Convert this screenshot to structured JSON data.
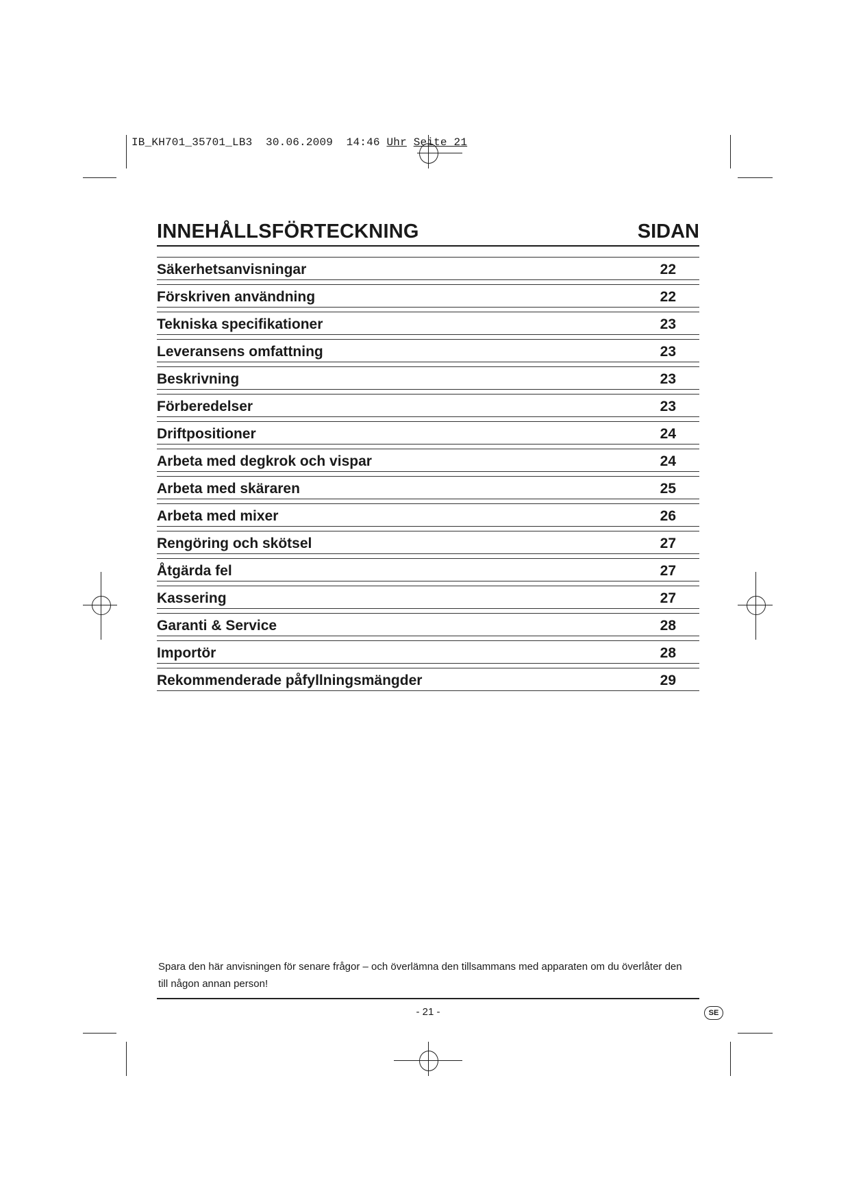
{
  "slug": {
    "file": "IB_KH701_35701_LB3",
    "date": "30.06.2009",
    "time": "14:46",
    "uhr": "Uhr",
    "seite": "Seite 21"
  },
  "toc": {
    "title": "INNEHÅLLSFÖRTECKNING",
    "page_header": "SIDAN",
    "entries": [
      {
        "label": "Säkerhetsanvisningar",
        "page": "22"
      },
      {
        "label": "Förskriven användning",
        "page": "22"
      },
      {
        "label": "Tekniska specifikationer",
        "page": "23"
      },
      {
        "label": "Leveransens omfattning",
        "page": "23"
      },
      {
        "label": "Beskrivning",
        "page": "23"
      },
      {
        "label": "Förberedelser",
        "page": "23"
      },
      {
        "label": "Driftpositioner",
        "page": "24"
      },
      {
        "label": "Arbeta med degkrok och vispar",
        "page": "24"
      },
      {
        "label": "Arbeta med skäraren",
        "page": "25"
      },
      {
        "label": "Arbeta med mixer",
        "page": "26"
      },
      {
        "label": "Rengöring och skötsel",
        "page": "27"
      },
      {
        "label": "Åtgärda fel",
        "page": "27"
      },
      {
        "label": "Kassering",
        "page": "27"
      },
      {
        "label": "Garanti & Service",
        "page": "28"
      },
      {
        "label": "Importör",
        "page": "28"
      },
      {
        "label": "Rekommenderade påfyllningsmängder",
        "page": "29"
      }
    ]
  },
  "footer": {
    "note": "Spara den här anvisningen för senare frågor – och överlämna den tillsammans med apparaten om du överlåter den till någon annan person!",
    "page_number": "- 21 -",
    "language_badge": "SE"
  }
}
